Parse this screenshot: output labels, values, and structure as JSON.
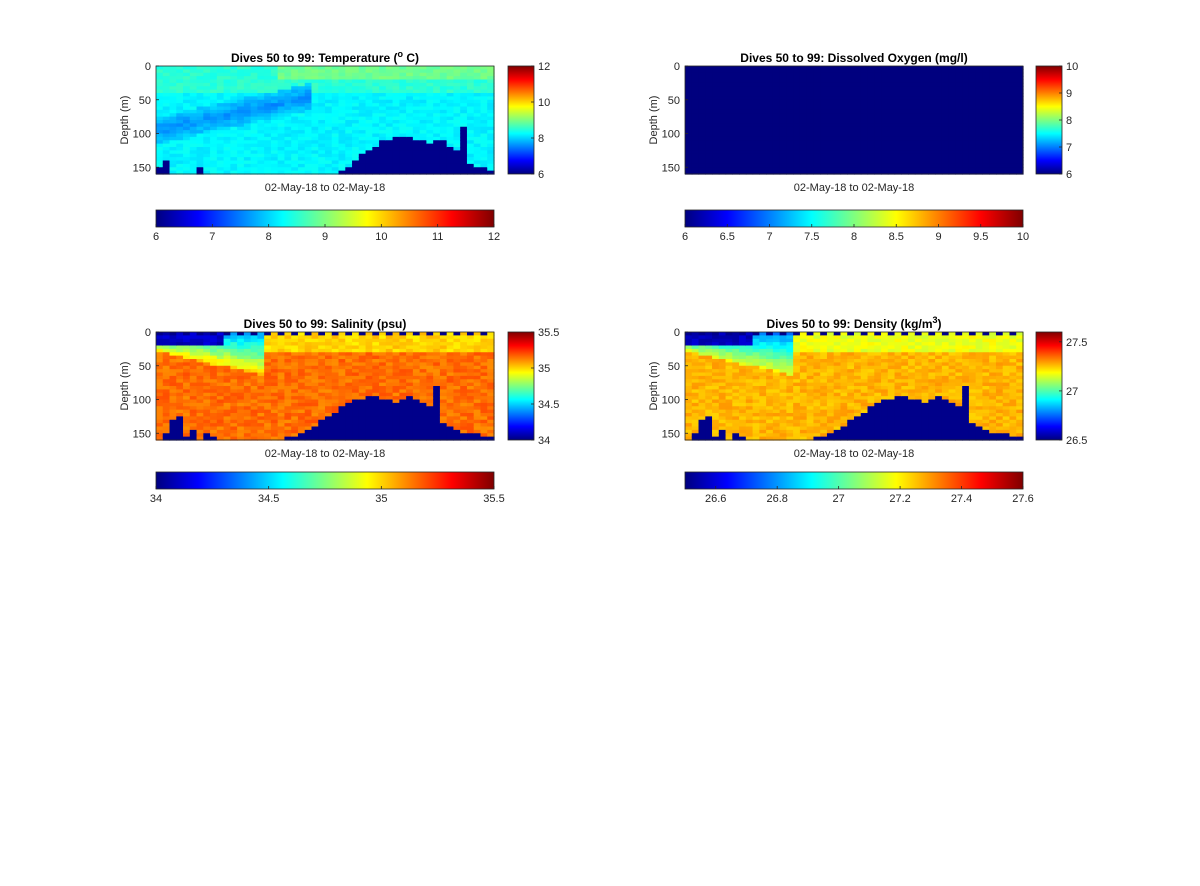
{
  "chart_data": [
    {
      "type": "heatmap",
      "id": "temperature",
      "title": "Dives 50 to 99: Temperature (",
      "title_super": "o",
      "title_suffix": " C)",
      "xlabel": "02-May-18 to 02-May-18",
      "ylabel": "Depth (m)",
      "ylim": [
        0,
        160
      ],
      "y_ticks": [
        "0",
        "50",
        "100",
        "150"
      ],
      "y_tick_values": [
        0,
        50,
        100,
        150
      ],
      "clim": [
        6,
        12
      ],
      "side_colorbar_ticks": [
        "6",
        "8",
        "10",
        "12"
      ],
      "side_colorbar_values": [
        6,
        8,
        10,
        12
      ],
      "bottom_colorbar_ticks": [
        "6",
        "7",
        "8",
        "9",
        "10",
        "11",
        "12"
      ],
      "bottom_colorbar_values": [
        6,
        7,
        8,
        9,
        10,
        11,
        12
      ],
      "colormap": "jet",
      "x_count": 50,
      "grid": false
    },
    {
      "type": "heatmap",
      "id": "oxygen",
      "title": "Dives 50 to 99: Dissolved Oxygen (mg/l)",
      "xlabel": "02-May-18 to 02-May-18",
      "ylabel": "Depth (m)",
      "ylim": [
        0,
        160
      ],
      "y_ticks": [
        "0",
        "50",
        "100",
        "150"
      ],
      "y_tick_values": [
        0,
        50,
        100,
        150
      ],
      "clim": [
        6,
        10
      ],
      "side_colorbar_ticks": [
        "6",
        "7",
        "8",
        "9",
        "10"
      ],
      "side_colorbar_values": [
        6,
        7,
        8,
        9,
        10
      ],
      "bottom_colorbar_ticks": [
        "6",
        "6.5",
        "7",
        "7.5",
        "8",
        "8.5",
        "9",
        "9.5",
        "10"
      ],
      "bottom_colorbar_values": [
        6,
        6.5,
        7,
        7.5,
        8,
        8.5,
        9,
        9.5,
        10
      ],
      "colormap": "jet",
      "x_count": 50,
      "grid": false
    },
    {
      "type": "heatmap",
      "id": "salinity",
      "title": "Dives 50 to 99: Salinity (psu)",
      "xlabel": "02-May-18 to 02-May-18",
      "ylabel": "Depth (m)",
      "ylim": [
        0,
        160
      ],
      "y_ticks": [
        "0",
        "50",
        "100",
        "150"
      ],
      "y_tick_values": [
        0,
        50,
        100,
        150
      ],
      "clim": [
        34,
        35.5
      ],
      "side_colorbar_ticks": [
        "34",
        "34.5",
        "35",
        "35.5"
      ],
      "side_colorbar_values": [
        34,
        34.5,
        35,
        35.5
      ],
      "bottom_colorbar_ticks": [
        "34",
        "34.5",
        "35",
        "35.5"
      ],
      "bottom_colorbar_values": [
        34,
        34.5,
        35,
        35.5
      ],
      "colormap": "jet",
      "x_count": 50,
      "grid": false
    },
    {
      "type": "heatmap",
      "id": "density",
      "title": "Dives 50 to 99: Density (kg/m",
      "title_super": "3",
      "title_suffix": ")",
      "xlabel": "02-May-18 to 02-May-18",
      "ylabel": "Depth (m)",
      "ylim": [
        0,
        160
      ],
      "y_ticks": [
        "0",
        "50",
        "100",
        "150"
      ],
      "y_tick_values": [
        0,
        50,
        100,
        150
      ],
      "clim": [
        26.5,
        27.6
      ],
      "side_colorbar_ticks": [
        "26.5",
        "27",
        "27.5"
      ],
      "side_colorbar_values": [
        26.5,
        27,
        27.5
      ],
      "bottom_colorbar_ticks": [
        "26.6",
        "26.8",
        "27",
        "27.2",
        "27.4",
        "27.6"
      ],
      "bottom_colorbar_values": [
        26.6,
        26.8,
        27,
        27.2,
        27.4,
        27.6
      ],
      "colormap": "jet",
      "x_count": 50,
      "grid": false
    }
  ],
  "colors": {
    "colormap_stops": [
      "#00007f",
      "#0000ff",
      "#007fff",
      "#00ffff",
      "#7fff7f",
      "#ffff00",
      "#ff7f00",
      "#ff0000",
      "#7f0000"
    ],
    "no_data": "#00008b",
    "frame": "#262626"
  }
}
